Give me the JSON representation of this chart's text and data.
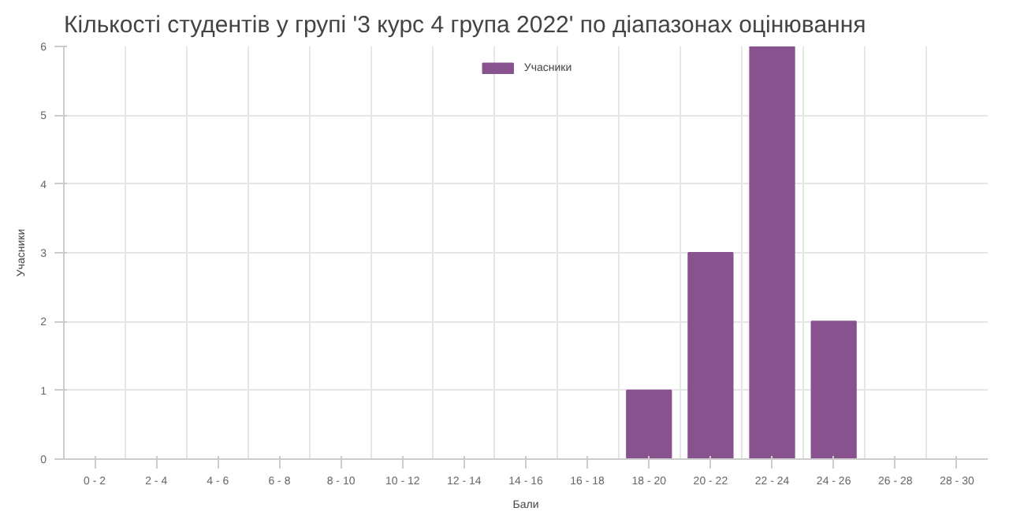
{
  "chart_data": {
    "type": "bar",
    "title": "Кількості студентів у групі '3 курс 4 група 2022' по діапазонах оцінювання",
    "categories": [
      "0 - 2",
      "2 - 4",
      "4 - 6",
      "6 - 8",
      "8 - 10",
      "10 - 12",
      "12 - 14",
      "14 - 16",
      "16 - 18",
      "18 - 20",
      "20 - 22",
      "22 - 24",
      "24 - 26",
      "26 - 28",
      "28 - 30"
    ],
    "series": [
      {
        "name": "Учасники",
        "color": "#88528f",
        "values": [
          0,
          0,
          0,
          0,
          0,
          0,
          0,
          0,
          0,
          1,
          3,
          6,
          2,
          0,
          0
        ]
      }
    ],
    "xlabel": "Бали",
    "ylabel": "Учасники",
    "ylim": [
      0,
      6
    ],
    "yticks": [
      0,
      1,
      2,
      3,
      4,
      5,
      6
    ],
    "grid": true,
    "legend": "top"
  }
}
